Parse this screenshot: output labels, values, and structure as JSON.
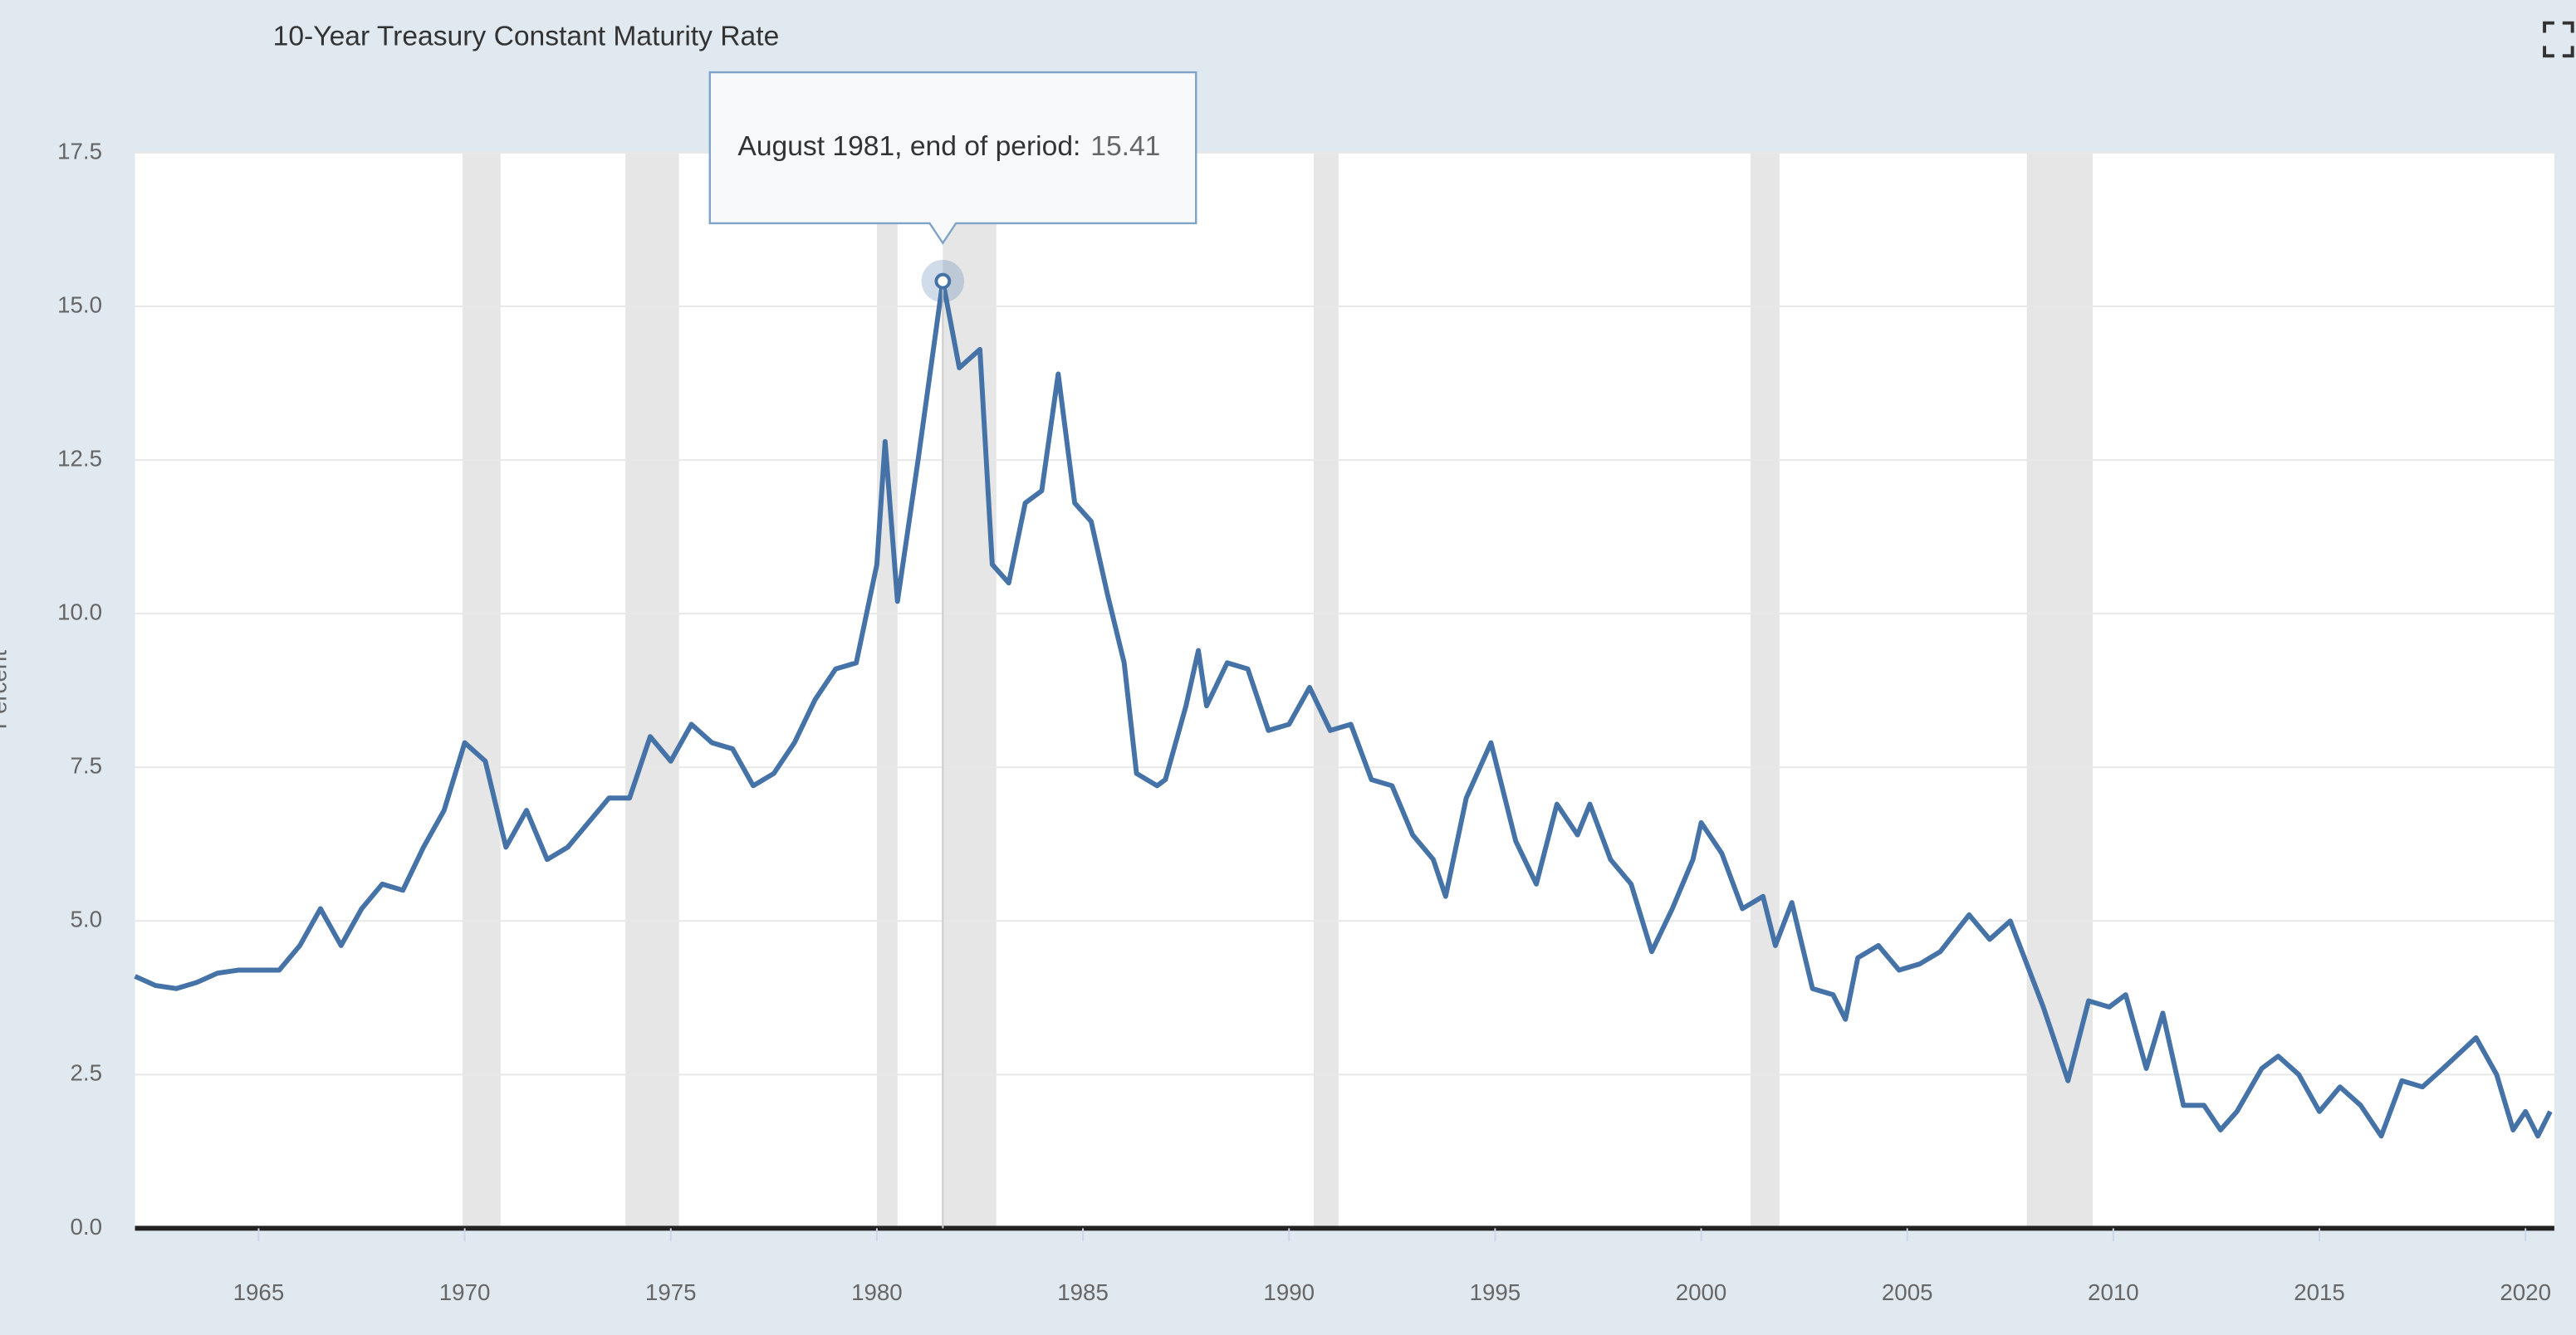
{
  "chart_data": {
    "type": "line",
    "title": "10-Year Treasury Constant Maturity Rate",
    "y_label": "Percent",
    "color": "#4572a7",
    "grid": true,
    "xlim": [
      1962,
      2020.7
    ],
    "xticks": [
      1965,
      1970,
      1975,
      1980,
      1985,
      1990,
      1995,
      2000,
      2005,
      2010,
      2015,
      2020
    ],
    "ylim": [
      0,
      17.5
    ],
    "yticks": [
      {
        "value": 0,
        "label": "0.0"
      },
      2.5,
      {
        "value": 5,
        "label": "5.0"
      },
      7.5,
      {
        "value": 10,
        "label": "10.0"
      },
      12.5,
      {
        "value": 15,
        "label": "15.0"
      },
      17.5
    ],
    "recessions": [
      [
        1969.95,
        1970.87
      ],
      [
        1973.9,
        1975.2
      ],
      [
        1980.0,
        1980.5
      ],
      [
        1981.6,
        1982.9
      ],
      [
        1990.6,
        1991.2
      ],
      [
        2001.2,
        2001.9
      ],
      [
        2007.9,
        2009.5
      ]
    ],
    "tooltip": {
      "label": "August 1981, end of period:",
      "x": 1981.6,
      "value": 15.41
    },
    "x": [
      1962.0,
      1962.5,
      1963.0,
      1963.5,
      1964.0,
      1964.5,
      1965.0,
      1965.5,
      1966.0,
      1966.5,
      1967.0,
      1967.5,
      1968.0,
      1968.5,
      1969.0,
      1969.5,
      1970.0,
      1970.5,
      1971.0,
      1971.5,
      1972.0,
      1972.5,
      1973.0,
      1973.5,
      1974.0,
      1974.5,
      1975.0,
      1975.5,
      1976.0,
      1976.5,
      1977.0,
      1977.5,
      1978.0,
      1978.5,
      1979.0,
      1979.5,
      1980.0,
      1980.2,
      1980.5,
      1981.0,
      1981.6,
      1982.0,
      1982.5,
      1982.8,
      1983.2,
      1983.6,
      1984.0,
      1984.4,
      1984.8,
      1985.2,
      1985.6,
      1986.0,
      1986.3,
      1986.8,
      1987.0,
      1987.5,
      1987.8,
      1988.0,
      1988.5,
      1989.0,
      1989.5,
      1990.0,
      1990.5,
      1991.0,
      1991.5,
      1992.0,
      1992.5,
      1993.0,
      1993.5,
      1993.8,
      1994.3,
      1994.9,
      1995.5,
      1996.0,
      1996.5,
      1997.0,
      1997.3,
      1997.8,
      1998.3,
      1998.8,
      1999.3,
      1999.8,
      2000.0,
      2000.5,
      2001.0,
      2001.5,
      2001.8,
      2002.2,
      2002.7,
      2003.2,
      2003.5,
      2003.8,
      2004.3,
      2004.8,
      2005.3,
      2005.8,
      2006.5,
      2007.0,
      2007.5,
      2007.9,
      2008.3,
      2008.9,
      2009.4,
      2009.9,
      2010.3,
      2010.8,
      2011.2,
      2011.7,
      2012.2,
      2012.6,
      2013.0,
      2013.6,
      2014.0,
      2014.5,
      2015.0,
      2015.5,
      2016.0,
      2016.5,
      2017.0,
      2017.5,
      2018.0,
      2018.8,
      2019.3,
      2019.7,
      2020.0,
      2020.3,
      2020.6
    ],
    "values": [
      4.1,
      3.95,
      3.9,
      4.0,
      4.15,
      4.2,
      4.2,
      4.2,
      4.6,
      5.2,
      4.6,
      5.2,
      5.6,
      5.5,
      6.2,
      6.8,
      7.9,
      7.6,
      6.2,
      6.8,
      6.0,
      6.2,
      6.6,
      7.0,
      7.0,
      8.0,
      7.6,
      8.2,
      7.9,
      7.8,
      7.2,
      7.4,
      7.9,
      8.6,
      9.1,
      9.2,
      10.8,
      12.8,
      10.2,
      12.5,
      15.41,
      14.0,
      14.3,
      10.8,
      10.5,
      11.8,
      12.0,
      13.9,
      11.8,
      11.5,
      10.3,
      9.2,
      7.4,
      7.2,
      7.3,
      8.5,
      9.4,
      8.5,
      9.2,
      9.1,
      8.1,
      8.2,
      8.8,
      8.1,
      8.2,
      7.3,
      7.2,
      6.4,
      6.0,
      5.4,
      7.0,
      7.9,
      6.3,
      5.6,
      6.9,
      6.4,
      6.9,
      6.0,
      5.6,
      4.5,
      5.2,
      6.0,
      6.6,
      6.1,
      5.2,
      5.4,
      4.6,
      5.3,
      3.9,
      3.8,
      3.4,
      4.4,
      4.6,
      4.2,
      4.3,
      4.5,
      5.1,
      4.7,
      5.0,
      4.3,
      3.6,
      2.4,
      3.7,
      3.6,
      3.8,
      2.6,
      3.5,
      2.0,
      2.0,
      1.6,
      1.9,
      2.6,
      2.8,
      2.5,
      1.9,
      2.3,
      2.0,
      1.5,
      2.4,
      2.3,
      2.6,
      3.1,
      2.5,
      1.6,
      1.9,
      1.5,
      1.9
    ]
  }
}
